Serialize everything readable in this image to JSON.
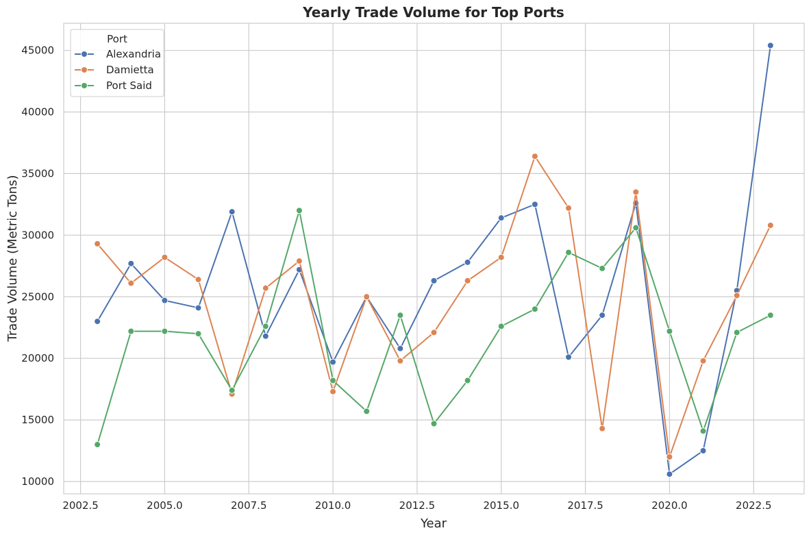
{
  "chart_data": {
    "type": "line",
    "title": "Yearly Trade Volume for Top Ports",
    "xlabel": "Year",
    "ylabel": "Trade Volume (Metric Tons)",
    "xlim": [
      2002.0,
      2024.0
    ],
    "ylim": [
      9000,
      47200
    ],
    "x_ticks": [
      2002.5,
      2005.0,
      2007.5,
      2010.0,
      2012.5,
      2015.0,
      2017.5,
      2020.0,
      2022.5
    ],
    "x_tick_labels": [
      "2002.5",
      "2005.0",
      "2007.5",
      "2010.0",
      "2012.5",
      "2015.0",
      "2017.5",
      "2020.0",
      "2022.5"
    ],
    "y_ticks": [
      10000,
      15000,
      20000,
      25000,
      30000,
      35000,
      40000,
      45000
    ],
    "y_tick_labels": [
      "10000",
      "15000",
      "20000",
      "25000",
      "30000",
      "35000",
      "40000",
      "45000"
    ],
    "grid": true,
    "legend": {
      "title": "Port",
      "placement": "top-left"
    },
    "x": [
      2003,
      2004,
      2005,
      2006,
      2007,
      2008,
      2009,
      2010,
      2011,
      2012,
      2013,
      2014,
      2015,
      2016,
      2017,
      2018,
      2019,
      2020,
      2021,
      2022,
      2023
    ],
    "series": [
      {
        "name": "Alexandria",
        "color": "#4c72b0",
        "values": [
          23000,
          27700,
          24700,
          24100,
          31900,
          21800,
          27200,
          19700,
          25000,
          20800,
          26300,
          27800,
          31400,
          32500,
          20100,
          23500,
          32600,
          10600,
          12500,
          25500,
          45400
        ]
      },
      {
        "name": "Damietta",
        "color": "#dd8452",
        "values": [
          29300,
          26100,
          28200,
          26400,
          17100,
          25700,
          27900,
          17300,
          25000,
          19800,
          22100,
          26300,
          28200,
          36400,
          32200,
          14300,
          33500,
          12000,
          19800,
          25100,
          30800
        ]
      },
      {
        "name": "Port Said",
        "color": "#55a868",
        "values": [
          13000,
          22200,
          22200,
          22000,
          17400,
          22600,
          32000,
          18200,
          15700,
          23500,
          14700,
          18200,
          22600,
          24000,
          28600,
          27300,
          30600,
          22200,
          14100,
          22100,
          23500
        ]
      }
    ]
  }
}
